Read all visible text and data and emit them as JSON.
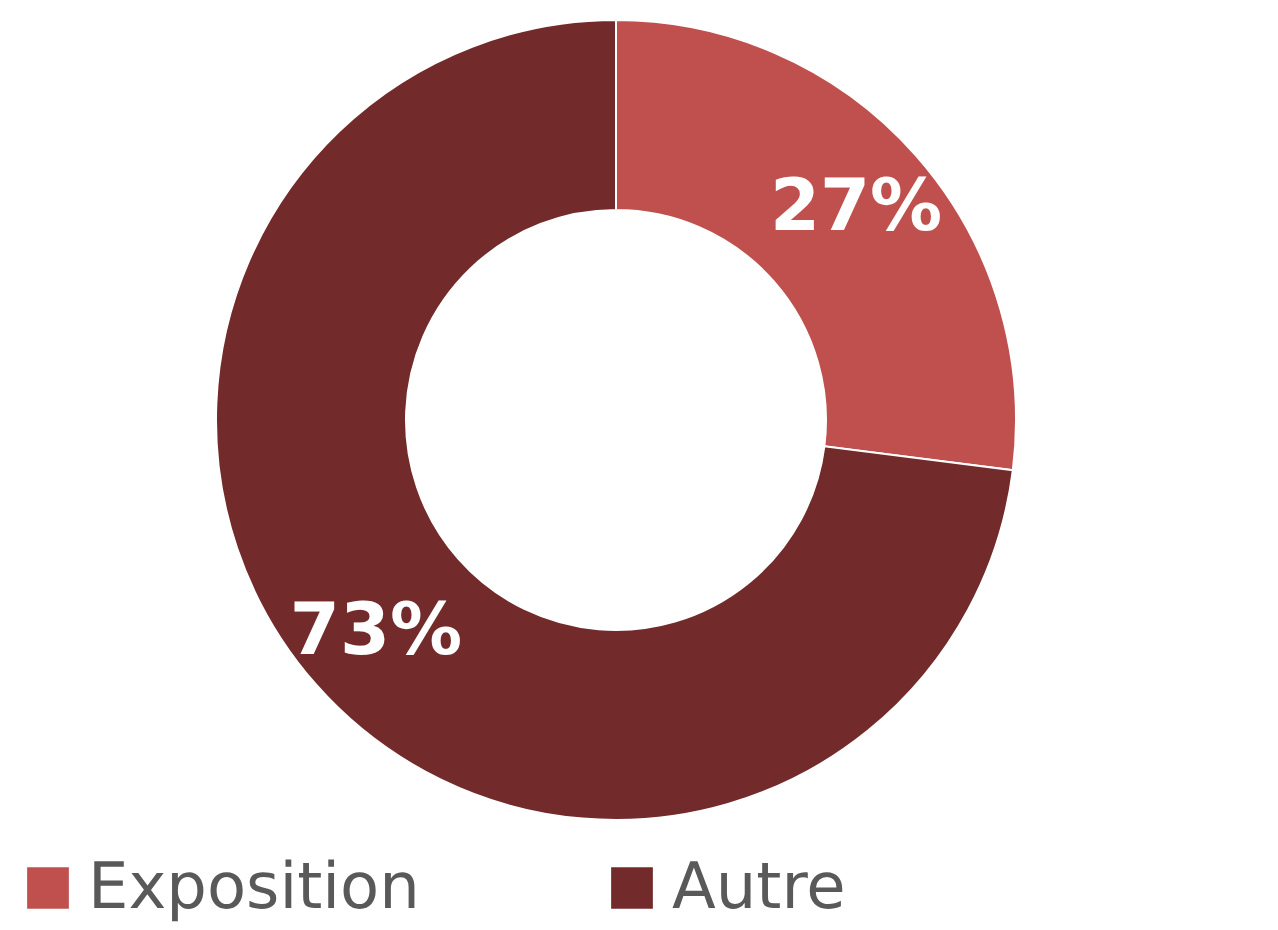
{
  "chart_data": {
    "type": "donut",
    "categories": [
      "Exposition",
      "Autre"
    ],
    "values": [
      27,
      73
    ],
    "colors": [
      "#c0504d",
      "#722a2a"
    ],
    "value_labels": [
      "27%",
      "73%"
    ],
    "legend": "bottom"
  }
}
